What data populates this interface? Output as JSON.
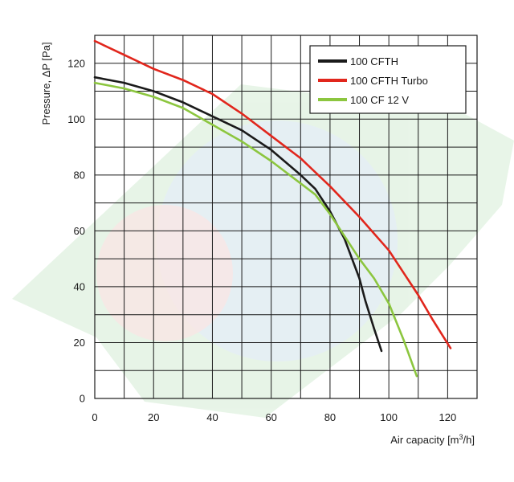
{
  "chart_data": {
    "type": "line",
    "xlabel": "Air capacity [m",
    "xlabel_sup": "3",
    "xlabel_tail": "/h]",
    "ylabel": "Pressure, ΔP [Pa]",
    "xlim": [
      0,
      130
    ],
    "ylim": [
      0,
      130
    ],
    "x_ticks": [
      0,
      20,
      40,
      60,
      80,
      100,
      120
    ],
    "y_ticks": [
      0,
      20,
      40,
      60,
      80,
      100,
      120
    ],
    "x_grid_step": 10,
    "y_grid_step": 10,
    "grid": true,
    "legend_position": "top-right",
    "series": [
      {
        "name": "100 CFTH",
        "color": "#1a1a1a",
        "x": [
          0,
          10,
          20,
          30,
          40,
          50,
          60,
          70,
          75,
          80,
          85,
          90,
          92,
          95,
          97.5
        ],
        "y": [
          115,
          113,
          110,
          106,
          101,
          96,
          89,
          80,
          75,
          67,
          57,
          43,
          35,
          25,
          17
        ]
      },
      {
        "name": "100 CFTH Turbo",
        "color": "#e1261c",
        "x": [
          0,
          10,
          20,
          30,
          40,
          50,
          60,
          70,
          80,
          90,
          100,
          110,
          115,
          121
        ],
        "y": [
          128,
          123,
          118,
          114,
          109,
          102,
          94,
          86,
          76,
          65,
          53,
          37,
          28,
          18
        ]
      },
      {
        "name": "100 CF 12 V",
        "color": "#8cc63f",
        "x": [
          0,
          10,
          20,
          30,
          40,
          50,
          60,
          70,
          75,
          80,
          85,
          90,
          95,
          100,
          105,
          109.5
        ],
        "y": [
          113,
          111,
          108,
          104,
          98,
          92,
          85,
          77,
          73,
          66,
          58,
          50,
          43,
          34,
          21,
          8
        ]
      }
    ]
  }
}
